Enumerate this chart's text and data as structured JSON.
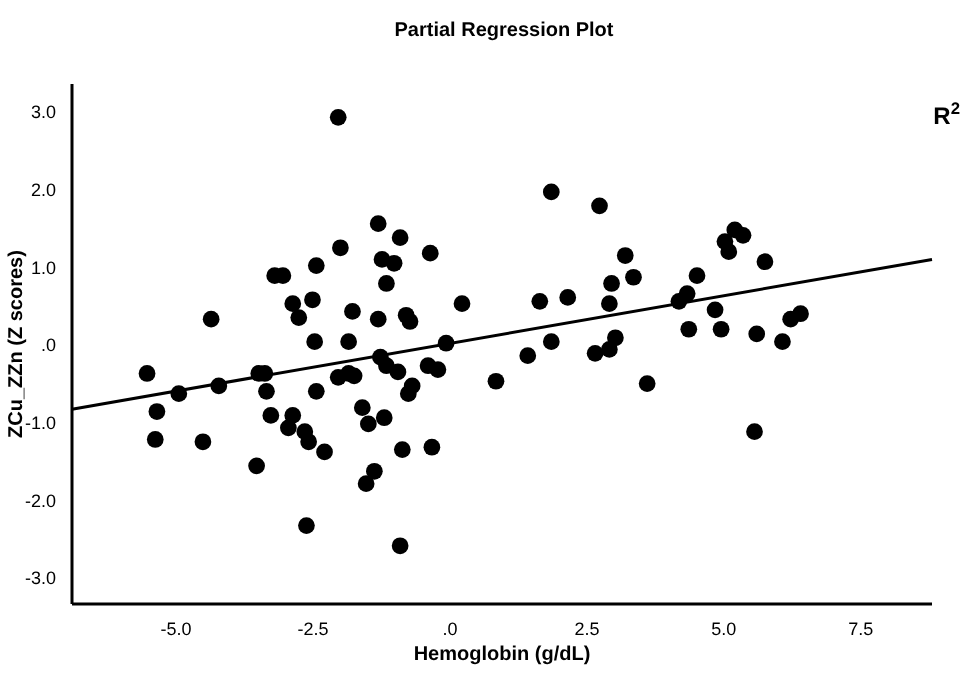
{
  "chart_data": {
    "type": "scatter",
    "title": "Partial Regression Plot",
    "xlabel": "Hemoglobin (g/dL)",
    "ylabel": "ZCu_ZZn (Z scores)",
    "annotations": [
      "R$^{2}$"
    ],
    "xlim": [
      -6.9,
      8.8
    ],
    "ylim": [
      -3.33,
      3.37
    ],
    "xticks": [
      {
        "value": -5,
        "label": "-5.0"
      },
      {
        "value": -2.5,
        "label": "-2.5"
      },
      {
        "value": 0,
        "label": ".0"
      },
      {
        "value": 2.5,
        "label": "2.5"
      },
      {
        "value": 5,
        "label": "5.0"
      },
      {
        "value": 7.5,
        "label": "7.5"
      }
    ],
    "yticks": [
      {
        "value": -3,
        "label": "-3.0"
      },
      {
        "value": -2,
        "label": "-2.0"
      },
      {
        "value": -1,
        "label": "-1.0"
      },
      {
        "value": 0,
        "label": ".0"
      },
      {
        "value": 1,
        "label": "1.0"
      },
      {
        "value": 2,
        "label": "2.0"
      },
      {
        "value": 3,
        "label": "3.0"
      }
    ],
    "grid": false,
    "marker": "circle",
    "series": [
      {
        "color": "#000000",
        "x": [
          -2.04,
          -1.31,
          -0.91,
          -2.0,
          -0.36,
          -3.2,
          -3.05,
          -2.44,
          -1.24,
          -1.02,
          -1.16,
          -4.36,
          -2.87,
          -2.76,
          -2.51,
          -1.78,
          -1.31,
          -0.8,
          -0.73,
          0.22,
          -2.47,
          -1.85,
          -0.07,
          -5.53,
          -3.49,
          -3.38,
          -2.04,
          -1.85,
          -1.75,
          -1.27,
          -1.16,
          -0.95,
          -0.4,
          -0.22,
          0.84,
          -4.95,
          -4.22,
          -3.35,
          -2.44,
          -0.69,
          -0.76,
          -5.35,
          -3.27,
          -2.87,
          -2.95,
          -2.65,
          -2.58,
          -2.29,
          -5.38,
          -4.51,
          -3.53,
          -1.6,
          -1.49,
          -1.2,
          -0.87,
          -1.53,
          -1.38,
          -2.62,
          -0.91,
          -0.33,
          1.85,
          2.73,
          3.2,
          2.95,
          3.35,
          2.91,
          2.15,
          1.64,
          5.2,
          5.35,
          5.02,
          5.09,
          5.75,
          4.51,
          4.33,
          4.18,
          4.84,
          4.36,
          4.95,
          5.6,
          6.07,
          6.22,
          6.4,
          1.85,
          1.42,
          3.02,
          2.91,
          2.65,
          3.6,
          5.56
        ],
        "values": [
          2.94,
          1.57,
          1.39,
          1.26,
          1.19,
          0.9,
          0.9,
          1.03,
          1.11,
          1.06,
          0.8,
          0.34,
          0.54,
          0.36,
          0.59,
          0.44,
          0.34,
          0.39,
          0.31,
          0.54,
          0.05,
          0.05,
          0.03,
          -0.36,
          -0.36,
          -0.36,
          -0.41,
          -0.36,
          -0.39,
          -0.15,
          -0.26,
          -0.34,
          -0.26,
          -0.31,
          -0.46,
          -0.62,
          -0.52,
          -0.59,
          -0.59,
          -0.52,
          -0.62,
          -0.85,
          -0.9,
          -0.9,
          -1.06,
          -1.11,
          -1.24,
          -1.37,
          -1.21,
          -1.24,
          -1.55,
          -0.8,
          -1.01,
          -0.93,
          -1.34,
          -1.78,
          -1.62,
          -2.32,
          -2.58,
          -1.31,
          1.98,
          1.8,
          1.16,
          0.8,
          0.88,
          0.54,
          0.62,
          0.57,
          1.49,
          1.42,
          1.34,
          1.21,
          1.08,
          0.9,
          0.67,
          0.57,
          0.46,
          0.21,
          0.21,
          0.15,
          0.05,
          0.34,
          0.41,
          0.05,
          -0.13,
          0.1,
          -0.05,
          -0.1,
          -0.49,
          -1.11
        ]
      },
      {
        "type": "line",
        "color": "#000000",
        "marker": "none",
        "x": [
          -6.9,
          8.8
        ],
        "values": [
          -0.82,
          1.11
        ]
      }
    ]
  }
}
